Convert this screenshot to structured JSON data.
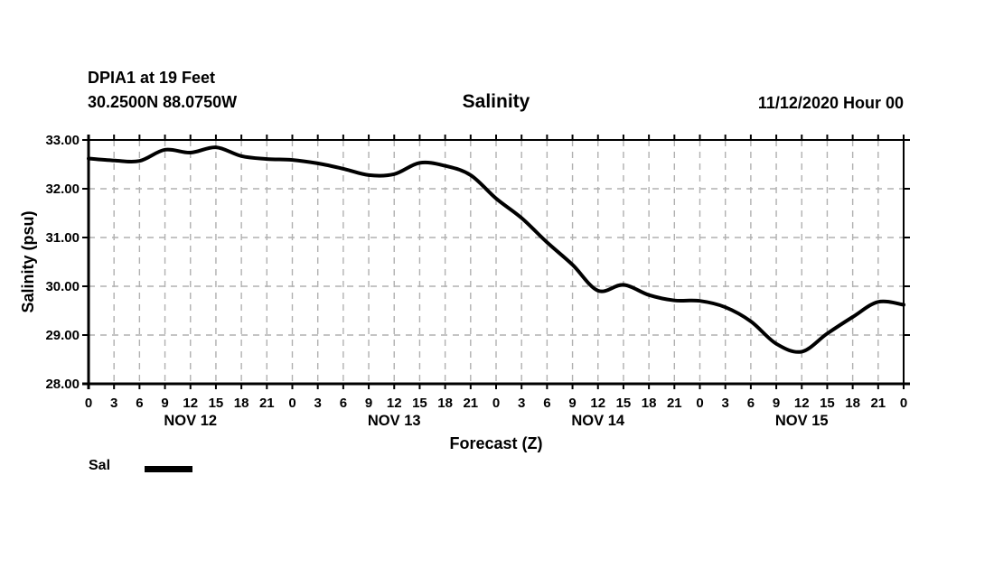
{
  "header": {
    "station": "DPIA1 at 19 Feet",
    "coordinates": "30.2500N 88.0750W",
    "title": "Salinity",
    "run_time": "11/12/2020 Hour 00"
  },
  "chart_data": {
    "type": "line",
    "title": "Salinity",
    "xlabel": "Forecast (Z)",
    "ylabel": "Salinity (psu)",
    "xlim": [
      0,
      96
    ],
    "ylim": [
      28,
      33
    ],
    "x_hours": [
      0,
      3,
      6,
      9,
      12,
      15,
      18,
      21,
      24,
      27,
      30,
      33,
      36,
      39,
      42,
      45,
      48,
      51,
      54,
      57,
      60,
      63,
      66,
      69,
      72,
      75,
      78,
      81,
      84,
      87,
      90,
      93,
      96
    ],
    "series": [
      {
        "name": "Sal",
        "color": "#000000",
        "values": [
          32.62,
          32.58,
          32.57,
          32.8,
          32.74,
          32.85,
          32.67,
          32.61,
          32.59,
          32.52,
          32.41,
          32.28,
          32.3,
          32.53,
          32.47,
          32.28,
          31.8,
          31.4,
          30.9,
          30.44,
          29.91,
          30.03,
          29.82,
          29.71,
          29.7,
          29.57,
          29.28,
          28.82,
          28.66,
          29.03,
          29.37,
          29.68,
          29.62
        ]
      }
    ],
    "xtick_labels": [
      "0",
      "3",
      "6",
      "9",
      "12",
      "15",
      "18",
      "21",
      "0",
      "3",
      "6",
      "9",
      "12",
      "15",
      "18",
      "21",
      "0",
      "3",
      "6",
      "9",
      "12",
      "15",
      "18",
      "21",
      "0",
      "3",
      "6",
      "9",
      "12",
      "15",
      "18",
      "21",
      "0"
    ],
    "ytick_values": [
      28,
      29,
      30,
      31,
      32,
      33
    ],
    "ytick_labels": [
      "28.00",
      "29.00",
      "30.00",
      "31.00",
      "32.00",
      "33.00"
    ],
    "day_labels": [
      {
        "label": "NOV 12",
        "hour": 12
      },
      {
        "label": "NOV 13",
        "hour": 36
      },
      {
        "label": "NOV 14",
        "hour": 60
      },
      {
        "label": "NOV 15",
        "hour": 84
      }
    ],
    "grid": {
      "show": true,
      "color": "#b0b0b0",
      "dash": "7 6"
    },
    "legend": {
      "position": "bottom-left",
      "entries": [
        {
          "label": "Sal",
          "swatch_color": "#000000"
        }
      ]
    },
    "axis_color": "#000000",
    "line_width": 4
  }
}
